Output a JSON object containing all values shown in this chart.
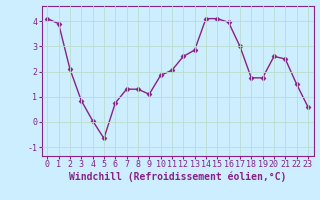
{
  "x": [
    0,
    1,
    2,
    3,
    4,
    5,
    6,
    7,
    8,
    9,
    10,
    11,
    12,
    13,
    14,
    15,
    16,
    17,
    18,
    19,
    20,
    21,
    22,
    23
  ],
  "y": [
    4.1,
    3.9,
    2.1,
    0.85,
    0.05,
    -0.65,
    0.75,
    1.3,
    1.3,
    1.1,
    1.85,
    2.05,
    2.6,
    2.85,
    4.1,
    4.1,
    3.95,
    3.0,
    1.75,
    1.75,
    2.6,
    2.5,
    1.5,
    0.6
  ],
  "line_color": "#882288",
  "marker": "D",
  "marker_size": 2.5,
  "background_color": "#cceeff",
  "grid_color": "#aaddcc",
  "xlabel": "Windchill (Refroidissement éolien,°C)",
  "xlabel_fontsize": 7,
  "xlim": [
    -0.5,
    23.5
  ],
  "ylim": [
    -1.35,
    4.6
  ],
  "yticks": [
    -1,
    0,
    1,
    2,
    3,
    4
  ],
  "xticks": [
    0,
    1,
    2,
    3,
    4,
    5,
    6,
    7,
    8,
    9,
    10,
    11,
    12,
    13,
    14,
    15,
    16,
    17,
    18,
    19,
    20,
    21,
    22,
    23
  ],
  "tick_fontsize": 6,
  "line_width": 1.0,
  "spine_color": "#882288"
}
